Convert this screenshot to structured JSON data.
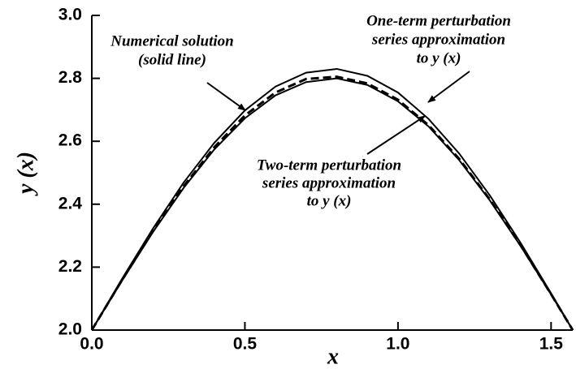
{
  "chart_data": {
    "type": "line",
    "xlabel": "x",
    "ylabel": "y (x)",
    "x": [
      0,
      0.1,
      0.2,
      0.3,
      0.4,
      0.5,
      0.6,
      0.7,
      0.8,
      0.9,
      1.0,
      1.1,
      1.2,
      1.3,
      1.4,
      1.5,
      1.5708
    ],
    "series": [
      {
        "color": "#000000",
        "style": "solid",
        "values": [
          2,
          2.165,
          2.323,
          2.469,
          2.595,
          2.698,
          2.774,
          2.818,
          2.83,
          2.808,
          2.755,
          2.671,
          2.561,
          2.428,
          2.278,
          2.117,
          2.0
        ]
      },
      {
        "color": "#000000",
        "style": "solid",
        "values": [
          2,
          2.159,
          2.312,
          2.452,
          2.574,
          2.673,
          2.746,
          2.788,
          2.8,
          2.779,
          2.727,
          2.647,
          2.54,
          2.412,
          2.268,
          2.113,
          2.0
        ]
      },
      {
        "color": "#000000",
        "style": "dashed",
        "values": [
          2,
          2.161,
          2.315,
          2.457,
          2.581,
          2.682,
          2.755,
          2.798,
          2.805,
          2.784,
          2.732,
          2.651,
          2.544,
          2.415,
          2.27,
          2.114,
          2.0
        ]
      }
    ],
    "xlim": [
      0,
      1.5708
    ],
    "ylim": [
      2.0,
      3.0
    ],
    "xticks": [
      {
        "value": 0,
        "label": "0.0"
      },
      {
        "value": 0.5,
        "label": "0.5"
      },
      {
        "value": 1.0,
        "label": "1.0"
      },
      {
        "value": 1.5,
        "label": "1.5"
      }
    ],
    "yticks": [
      {
        "value": 2.0,
        "label": "2.0"
      },
      2.2,
      2.4,
      2.6,
      2.8,
      {
        "value": 3.0,
        "label": "3.0"
      }
    ],
    "annotations": [
      {
        "lines": [
          "Numerical solution",
          "(solid line)"
        ]
      },
      {
        "lines": [
          "One-term perturbation",
          "series approximation",
          "to y (x)"
        ]
      },
      {
        "lines": [
          "Two-term perturbation",
          "series approximation",
          "to y (x)"
        ]
      }
    ]
  }
}
